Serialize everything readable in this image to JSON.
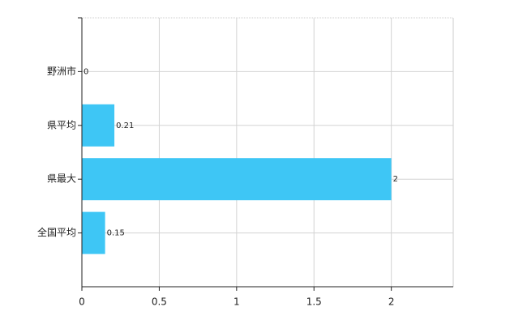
{
  "chart_data": {
    "type": "bar",
    "orientation": "horizontal",
    "categories": [
      "野洲市",
      "県平均",
      "県最大",
      "全国平均"
    ],
    "values": [
      0,
      0.21,
      2,
      0.15
    ],
    "color": "#3ec6f5",
    "xlim": [
      0,
      2.4
    ],
    "xticks": [
      0,
      0.5,
      1,
      1.5,
      2
    ],
    "grid": true
  }
}
